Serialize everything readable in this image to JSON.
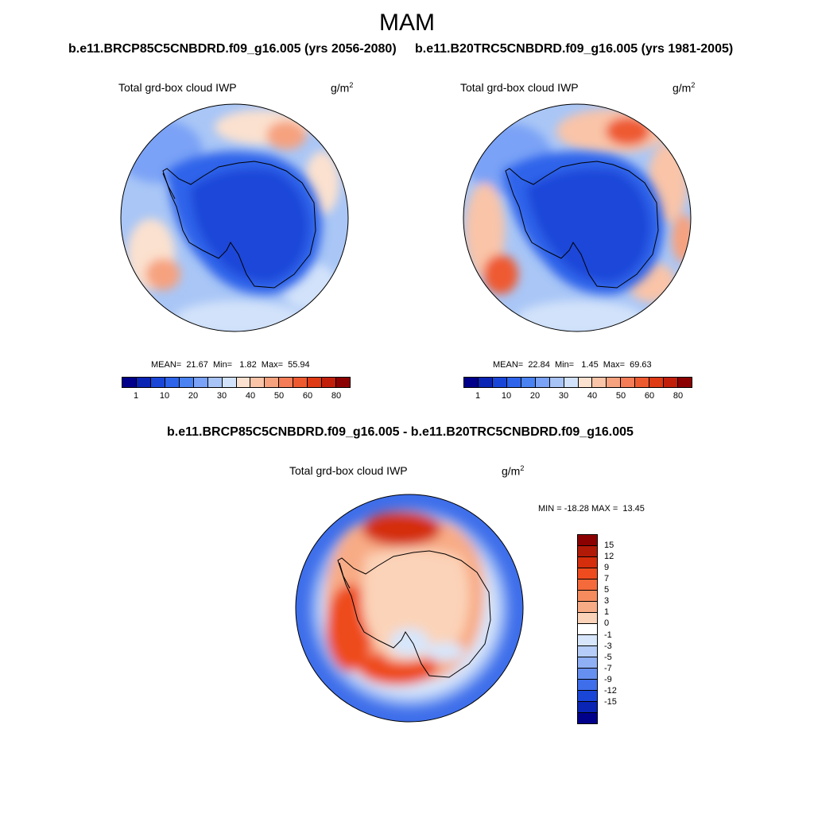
{
  "title": "MAM",
  "panels": [
    {
      "case": "b.e11.BRCP85C5CNBDRD.f09_g16.005 (yrs 2056-2080)",
      "variable": "Total grd-box cloud IWP",
      "units": "g/m",
      "units_exp": "2",
      "stats": "MEAN=  21.67  Min=   1.82  Max=  55.94"
    },
    {
      "case": "b.e11.B20TRC5CNBDRD.f09_g16.005 (yrs 1981-2005)",
      "variable": "Total grd-box cloud IWP",
      "units": "g/m",
      "units_exp": "2",
      "stats": "MEAN=  22.84  Min=   1.45  Max=  69.63"
    }
  ],
  "diff": {
    "case": "b.e11.BRCP85C5CNBDRD.f09_g16.005 - b.e11.B20TRC5CNBDRD.f09_g16.005",
    "variable": "Total grd-box cloud IWP",
    "units": "g/m",
    "units_exp": "2",
    "stats": "MIN = -18.28 MAX =  13.45"
  },
  "colorbar_abs": {
    "colors": [
      "#00008b",
      "#0a24b4",
      "#1a46d8",
      "#2e64ea",
      "#4a82f2",
      "#7aa2f6",
      "#a8c4f6",
      "#d2e2fa",
      "#fbe1cf",
      "#f9c4a8",
      "#f6a27f",
      "#f47c56",
      "#ee5a30",
      "#de3a14",
      "#c21f0a",
      "#8b0000"
    ],
    "ticks": [
      "1",
      "10",
      "20",
      "30",
      "40",
      "50",
      "60",
      "80"
    ]
  },
  "colorbar_diff": {
    "colors": [
      "#8b0000",
      "#b21a08",
      "#d42e0c",
      "#ee4c1e",
      "#f46a3a",
      "#f68c5e",
      "#f8ac86",
      "#fbd3b8",
      "#ffffff",
      "#d7e6fb",
      "#b5cdf8",
      "#8fb0f5",
      "#6690f0",
      "#3e6eea",
      "#1a46d8",
      "#0a24b4",
      "#00008b"
    ],
    "ticks": [
      "15",
      "12",
      "9",
      "7",
      "5",
      "3",
      "1",
      "0",
      "-1",
      "-3",
      "-5",
      "-7",
      "-9",
      "-12",
      "-15"
    ]
  }
}
